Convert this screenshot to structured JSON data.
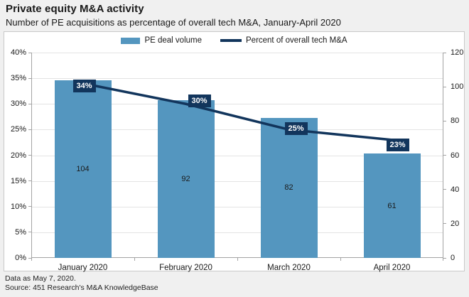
{
  "header": {
    "title": "Private equity M&A activity",
    "subtitle": "Number of PE acquisitions as percentage of overall tech M&A, January-April 2020"
  },
  "footer": {
    "line1": "Data as May 7, 2020.",
    "line2": "Source: 451 Research's M&A KnowledgeBase"
  },
  "colors": {
    "bar": "#5496bf",
    "line": "#12355c",
    "label_box_bg": "#12355c",
    "label_box_text": "#ffffff",
    "page_bg": "#f0f0f0",
    "panel_bg": "#ffffff",
    "panel_border": "#c9c9c9",
    "grid": "#e3e3e3",
    "axis": "#a3a3a3",
    "text": "#191919"
  },
  "chart_data": {
    "type": "bar+line",
    "title": "Private equity M&A activity",
    "subtitle": "Number of PE acquisitions as percentage of overall tech M&A, January-April 2020",
    "categories": [
      "January 2020",
      "February 2020",
      "March 2020",
      "April 2020"
    ],
    "series": [
      {
        "name": "PE deal volume",
        "type": "bar",
        "axis": "right",
        "values": [
          104,
          92,
          82,
          61
        ]
      },
      {
        "name": "Percent of overall tech M&A",
        "type": "line",
        "axis": "left",
        "values": [
          34,
          30,
          25,
          23
        ],
        "labels": [
          "34%",
          "30%",
          "25%",
          "23%"
        ]
      }
    ],
    "left_axis": {
      "unit": "percent",
      "min": 0,
      "max": 40,
      "tick_values": [
        0,
        5,
        10,
        15,
        20,
        25,
        30,
        35,
        40
      ],
      "tick_labels": [
        "0%",
        "5%",
        "10%",
        "15%",
        "20%",
        "25%",
        "30%",
        "35%",
        "40%"
      ]
    },
    "right_axis": {
      "unit": "deals",
      "min": 0,
      "max": 120,
      "tick_values": [
        0,
        20,
        40,
        60,
        80,
        100,
        120
      ],
      "tick_labels": [
        "0",
        "20",
        "40",
        "60",
        "80",
        "100",
        "120"
      ]
    },
    "grid": "horizontal",
    "legend_position": "top-center"
  }
}
